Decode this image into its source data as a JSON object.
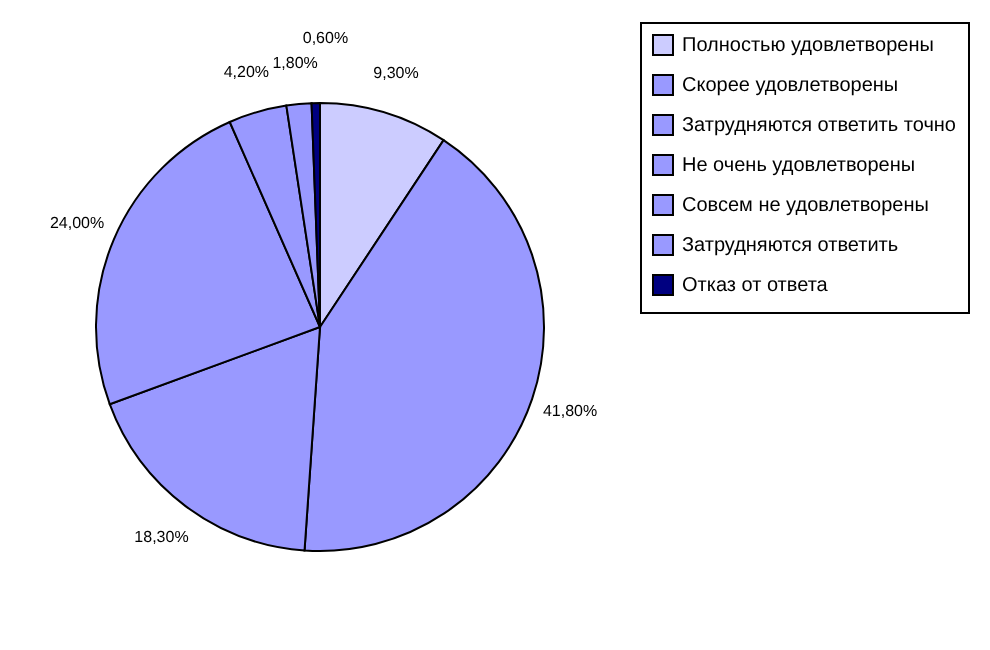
{
  "chart_data": {
    "type": "pie",
    "categories": [
      "Полностью удовлетворены",
      "Скорее удовлетворены",
      "Затрудняются ответить точно",
      "Не очень удовлетворены",
      "Совсем не удовлетворены",
      "Затрудняются ответить",
      "Отказ от ответа"
    ],
    "values": [
      9.3,
      41.8,
      18.3,
      24.0,
      4.2,
      1.8,
      0.6
    ],
    "value_labels": [
      "9,30%",
      "41,80%",
      "18,30%",
      "24,00%",
      "4,20%",
      "1,80%",
      "0,60%"
    ],
    "colors": [
      "#ccccff",
      "#9999ff",
      "#9999ff",
      "#9999ff",
      "#9999ff",
      "#9999ff",
      "#000080"
    ],
    "legend": "right"
  }
}
